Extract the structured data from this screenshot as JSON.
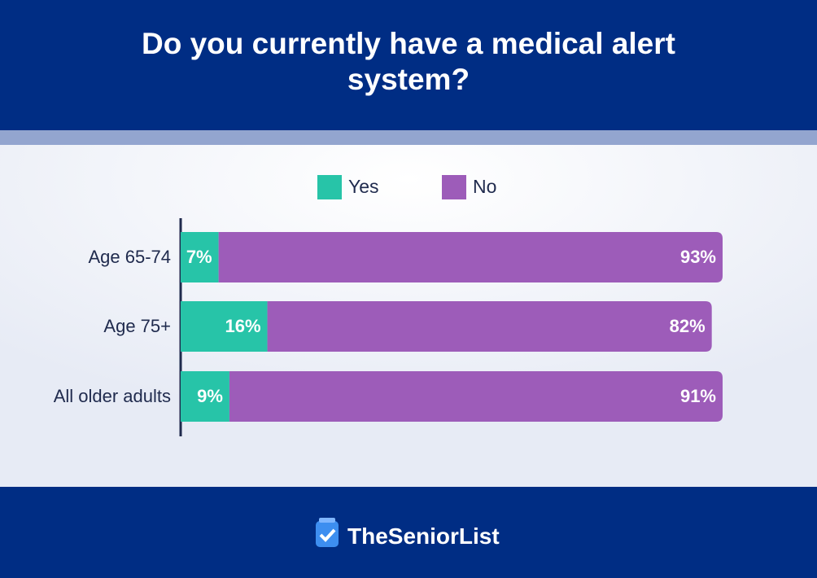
{
  "chart_data": {
    "type": "stacked-bar-horizontal",
    "title": "Do you currently have a medical alert system?",
    "categories": [
      "Age 65-74",
      "Age 75+",
      "All older adults"
    ],
    "series": [
      {
        "name": "Yes",
        "color": "#27c4a8",
        "values": [
          7,
          16,
          9
        ],
        "value_labels": [
          "7%",
          "16%",
          "9%"
        ]
      },
      {
        "name": "No",
        "color": "#9d5cb9",
        "values": [
          93,
          82,
          91
        ],
        "value_labels": [
          "93%",
          "82%",
          "91%"
        ]
      }
    ],
    "xlim": [
      0,
      100
    ],
    "legend": "top"
  },
  "brand": "TheSeniorList"
}
